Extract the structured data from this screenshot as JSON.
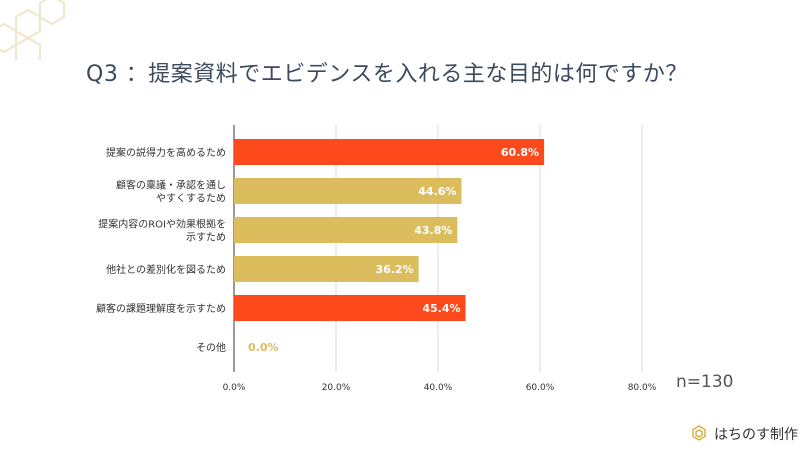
{
  "title": "Q3 ：提案資料でエビデンスを入れる主な目的は何ですか？",
  "n_label": "n=130",
  "footer": {
    "brand": "はちのす制作",
    "logo_icon": "honeycomb-icon"
  },
  "colors": {
    "orange": "#fd4a1c",
    "gold": "#dcbd5e",
    "title": "#3b4a5c",
    "grid": "#d9d9d9"
  },
  "chart_data": {
    "type": "bar",
    "orientation": "horizontal",
    "categories": [
      [
        "提案の説得力を高めるため"
      ],
      [
        "顧客の稟議・承認を通し",
        "やすくするため"
      ],
      [
        "提案内容のROIや効果根拠を",
        "示すため"
      ],
      [
        "他社との差別化を図るため"
      ],
      [
        "顧客の課題理解度を示すため"
      ],
      [
        "その他"
      ]
    ],
    "values": [
      60.8,
      44.6,
      43.8,
      36.2,
      45.4,
      0.0
    ],
    "value_labels": [
      "60.8%",
      "44.6%",
      "43.8%",
      "36.2%",
      "45.4%",
      "0.0%"
    ],
    "bar_colors": [
      "#fd4a1c",
      "#dcbd5e",
      "#dcbd5e",
      "#dcbd5e",
      "#fd4a1c",
      "#dcbd5e"
    ],
    "xlim": [
      0,
      80
    ],
    "xticks": [
      0,
      20,
      40,
      60,
      80
    ],
    "xtick_labels": [
      "0.0%",
      "20.0%",
      "40.0%",
      "60.0%",
      "80.0%"
    ],
    "grid": true
  }
}
